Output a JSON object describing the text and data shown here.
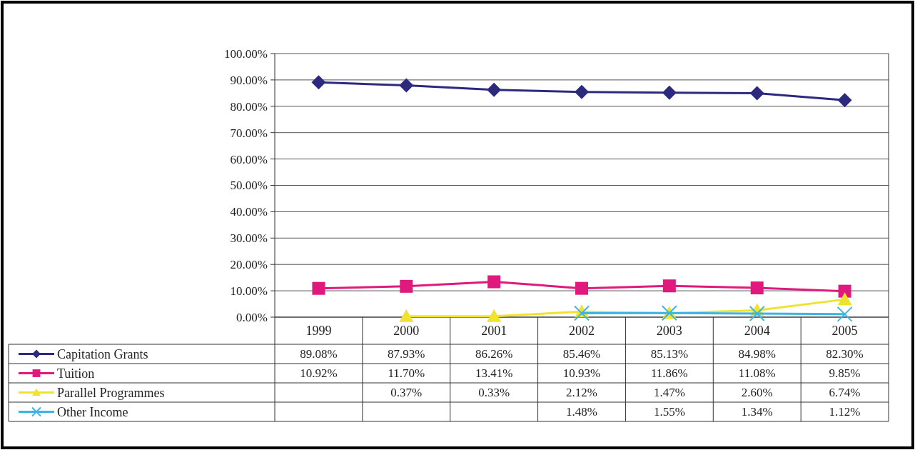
{
  "chart_data": {
    "type": "line",
    "categories": [
      "1999",
      "2000",
      "2001",
      "2002",
      "2003",
      "2004",
      "2005"
    ],
    "ylim": [
      0,
      100
    ],
    "yticks": [
      {
        "value": 0,
        "label": "0.00%"
      },
      {
        "value": 10,
        "label": "10.00%"
      },
      {
        "value": 20,
        "label": "20.00%"
      },
      {
        "value": 30,
        "label": "30.00%"
      },
      {
        "value": 40,
        "label": "40.00%"
      },
      {
        "value": 50,
        "label": "50.00%"
      },
      {
        "value": 60,
        "label": "60.00%"
      },
      {
        "value": 70,
        "label": "70.00%"
      },
      {
        "value": 80,
        "label": "80.00%"
      },
      {
        "value": 90,
        "label": "90.00%"
      },
      {
        "value": 100,
        "label": "100.00%"
      }
    ],
    "grid": "y",
    "legend": "bottom",
    "series": [
      {
        "name": "Capitation Grants",
        "color": "#2b2a7f",
        "marker": "diamond",
        "values": [
          89.08,
          87.93,
          86.26,
          85.46,
          85.13,
          84.98,
          82.3
        ],
        "value_labels": [
          "89.08%",
          "87.93%",
          "86.26%",
          "85.46%",
          "85.13%",
          "84.98%",
          "82.30%"
        ]
      },
      {
        "name": "Tuition",
        "color": "#e0197d",
        "marker": "square",
        "values": [
          10.92,
          11.7,
          13.41,
          10.93,
          11.86,
          11.08,
          9.85
        ],
        "value_labels": [
          "10.92%",
          "11.70%",
          "13.41%",
          "10.93%",
          "11.86%",
          "11.08%",
          "9.85%"
        ]
      },
      {
        "name": "Parallel Programmes",
        "color": "#f2e230",
        "marker": "triangle",
        "values": [
          null,
          0.37,
          0.33,
          2.12,
          1.47,
          2.6,
          6.74
        ],
        "value_labels": [
          null,
          "0.37%",
          "0.33%",
          "2.12%",
          "1.47%",
          "2.60%",
          "6.74%"
        ]
      },
      {
        "name": "Other Income",
        "color": "#3cb4e6",
        "marker": "cross",
        "values": [
          null,
          null,
          null,
          1.48,
          1.55,
          1.34,
          1.12
        ],
        "value_labels": [
          null,
          null,
          null,
          "1.48%",
          "1.55%",
          "1.34%",
          "1.12%"
        ]
      }
    ]
  }
}
